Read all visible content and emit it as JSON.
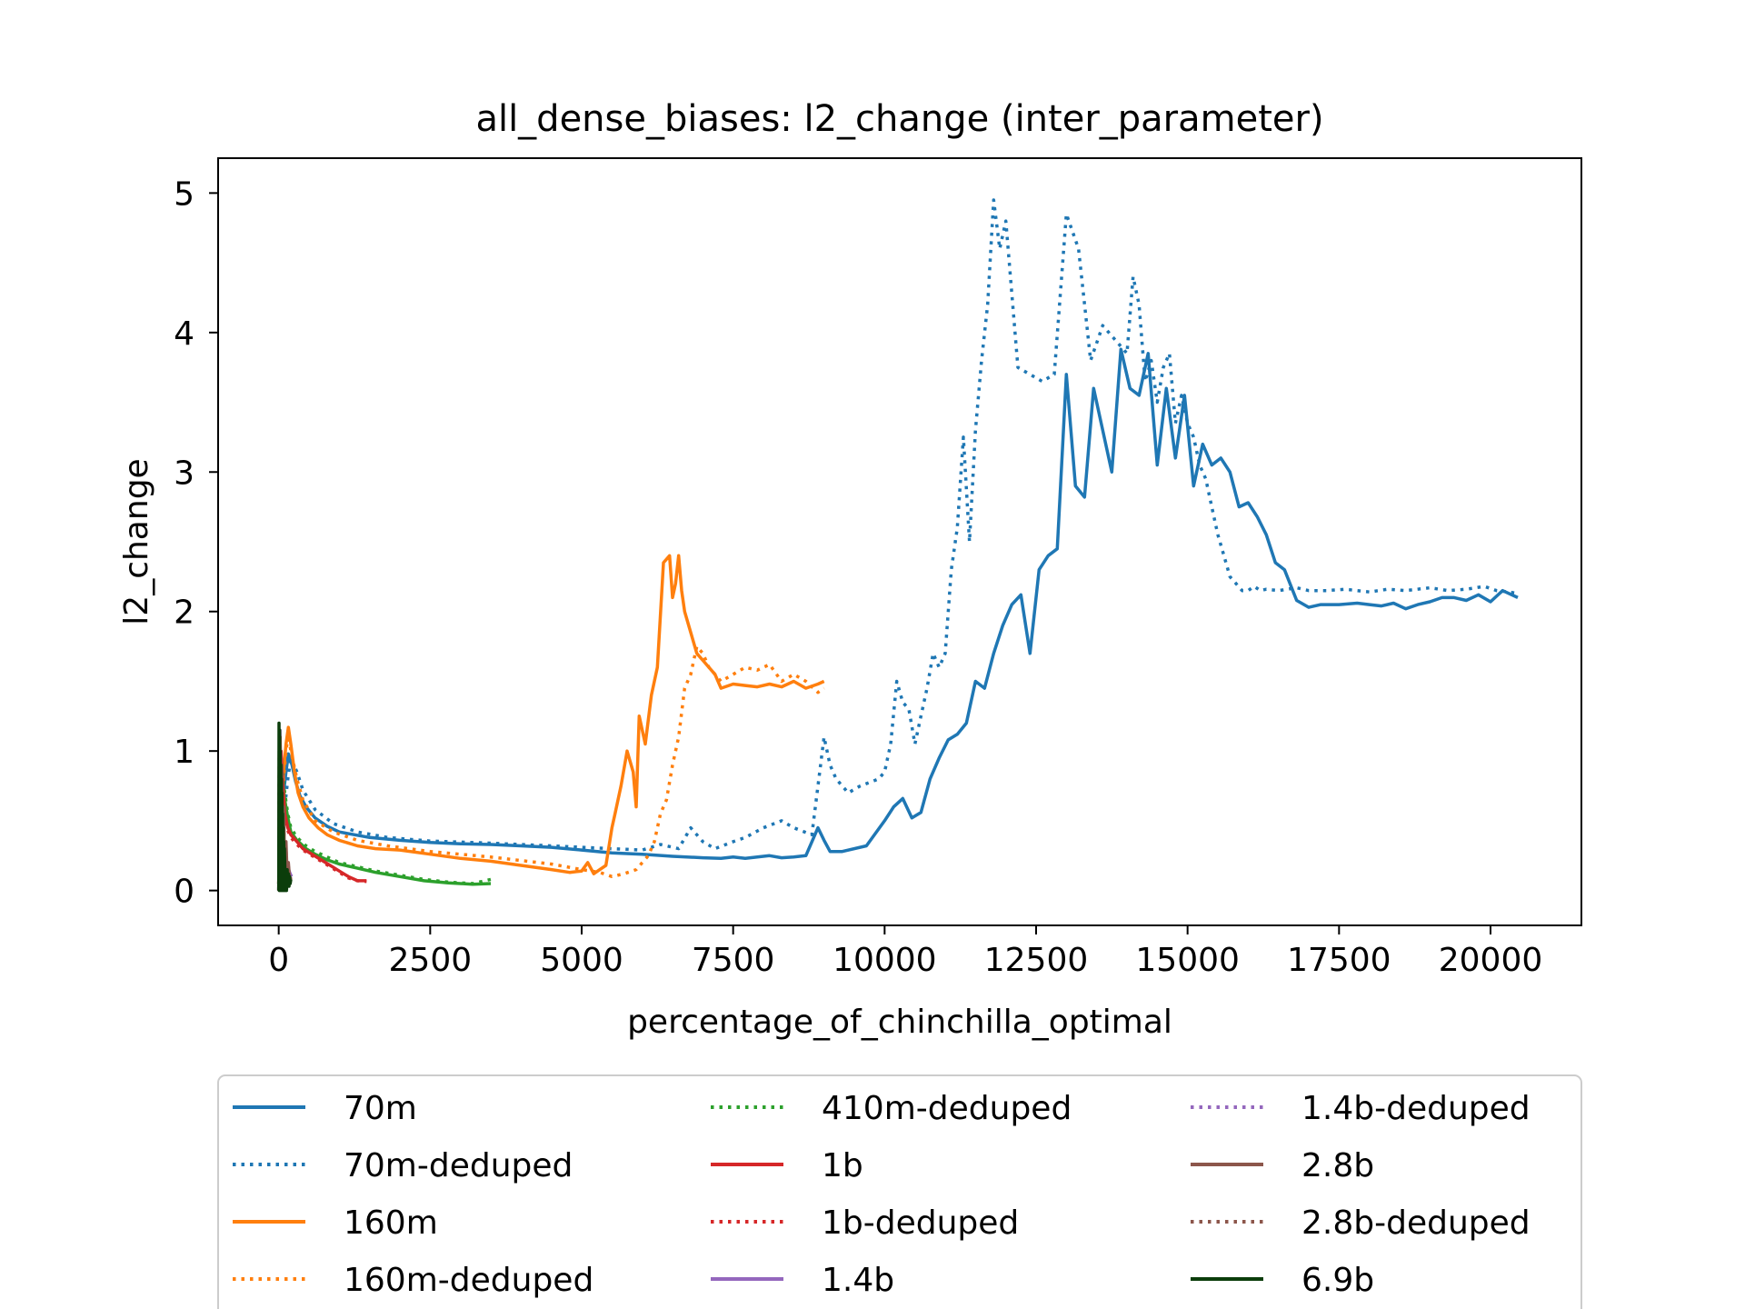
{
  "chart_data": {
    "type": "line",
    "title": "all_dense_biases: l2_change (inter_parameter)",
    "xlabel": "percentage_of_chinchilla_optimal",
    "ylabel": "l2_change",
    "xlim": [
      -1000,
      21500
    ],
    "ylim": [
      -0.25,
      5.25
    ],
    "xticks": [
      0,
      2500,
      5000,
      7500,
      10000,
      12500,
      15000,
      17500,
      20000
    ],
    "yticks": [
      0,
      1,
      2,
      3,
      4,
      5
    ],
    "grid": false,
    "legend": {
      "placement": "below",
      "columns": 3
    },
    "series": [
      {
        "name": "70m",
        "color": "#1f77b4",
        "style": "solid",
        "x": [
          0,
          20,
          50,
          80,
          120,
          160,
          220,
          280,
          350,
          450,
          600,
          800,
          1000,
          1500,
          2000,
          2500,
          3000,
          3500,
          4000,
          4500,
          5000,
          5500,
          6000,
          6500,
          7000,
          7300,
          7500,
          7700,
          7900,
          8100,
          8300,
          8500,
          8700,
          8900,
          9000,
          9100,
          9300,
          9700,
          10000,
          10150,
          10300,
          10450,
          10600,
          10750,
          10900,
          11050,
          11200,
          11350,
          11500,
          11650,
          11800,
          11950,
          12100,
          12250,
          12400,
          12550,
          12700,
          12850,
          13000,
          13150,
          13300,
          13450,
          13600,
          13750,
          13900,
          14050,
          14200,
          14350,
          14500,
          14650,
          14800,
          14950,
          15100,
          15250,
          15400,
          15550,
          15700,
          15850,
          16000,
          16150,
          16300,
          16450,
          16600,
          16800,
          17000,
          17200,
          17500,
          17800,
          18000,
          18200,
          18400,
          18600,
          18800,
          19000,
          19200,
          19400,
          19600,
          19800,
          20000,
          20200,
          20450
        ],
        "y": [
          0.05,
          0.3,
          0.55,
          0.7,
          0.85,
          0.98,
          0.9,
          0.78,
          0.68,
          0.6,
          0.52,
          0.46,
          0.42,
          0.38,
          0.36,
          0.345,
          0.335,
          0.33,
          0.32,
          0.31,
          0.29,
          0.27,
          0.26,
          0.245,
          0.235,
          0.23,
          0.24,
          0.23,
          0.24,
          0.25,
          0.235,
          0.24,
          0.25,
          0.45,
          0.36,
          0.28,
          0.28,
          0.32,
          0.5,
          0.6,
          0.66,
          0.52,
          0.56,
          0.8,
          0.95,
          1.08,
          1.12,
          1.2,
          1.5,
          1.45,
          1.7,
          1.9,
          2.05,
          2.12,
          1.7,
          2.3,
          2.4,
          2.45,
          3.7,
          2.9,
          2.82,
          3.6,
          3.3,
          3.0,
          3.88,
          3.6,
          3.55,
          3.85,
          3.05,
          3.6,
          3.1,
          3.55,
          2.9,
          3.2,
          3.05,
          3.1,
          3.0,
          2.75,
          2.78,
          2.68,
          2.55,
          2.35,
          2.3,
          2.08,
          2.03,
          2.05,
          2.05,
          2.06,
          2.05,
          2.04,
          2.06,
          2.02,
          2.05,
          2.07,
          2.1,
          2.1,
          2.08,
          2.12,
          2.07,
          2.15,
          2.1
        ]
      },
      {
        "name": "70m-deduped",
        "color": "#1f77b4",
        "style": "dotted",
        "x": [
          0,
          50,
          100,
          150,
          200,
          300,
          400,
          600,
          900,
          1300,
          1800,
          2500,
          3500,
          4500,
          5500,
          6000,
          6300,
          6600,
          6800,
          7000,
          7200,
          7500,
          7700,
          8000,
          8300,
          8500,
          8800,
          9000,
          9100,
          9200,
          9400,
          9600,
          9900,
          10000,
          10100,
          10200,
          10300,
          10400,
          10500,
          10600,
          10700,
          10800,
          10900,
          11000,
          11100,
          11200,
          11300,
          11400,
          11500,
          11600,
          11700,
          11800,
          11900,
          12000,
          12200,
          12400,
          12600,
          12800,
          13000,
          13200,
          13400,
          13600,
          13800,
          14000,
          14100,
          14200,
          14300,
          14400,
          14500,
          14600,
          14700,
          14800,
          14900,
          15000,
          15100,
          15200,
          15300,
          15400,
          15500,
          15600,
          15700,
          15800,
          15900,
          16000,
          16100,
          16200,
          16300,
          16500,
          16800,
          17000,
          17300,
          17600,
          18000,
          18300,
          18600,
          19000,
          19300,
          19600,
          19900,
          20100,
          20300,
          20450
        ],
        "y": [
          0.05,
          0.3,
          0.6,
          0.8,
          0.95,
          0.85,
          0.72,
          0.58,
          0.48,
          0.42,
          0.38,
          0.355,
          0.34,
          0.32,
          0.3,
          0.29,
          0.33,
          0.3,
          0.45,
          0.35,
          0.3,
          0.35,
          0.38,
          0.45,
          0.5,
          0.45,
          0.4,
          1.1,
          0.9,
          0.8,
          0.7,
          0.75,
          0.8,
          0.85,
          1.05,
          1.5,
          1.35,
          1.3,
          1.05,
          1.25,
          1.45,
          1.7,
          1.6,
          1.7,
          2.3,
          2.6,
          3.25,
          2.5,
          3.3,
          3.8,
          4.2,
          4.95,
          4.6,
          4.8,
          3.75,
          3.7,
          3.65,
          3.7,
          4.85,
          4.6,
          3.8,
          4.05,
          3.95,
          3.85,
          4.4,
          4.2,
          3.65,
          3.8,
          3.5,
          3.75,
          3.85,
          3.35,
          3.55,
          3.35,
          3.25,
          3.05,
          2.95,
          2.75,
          2.55,
          2.4,
          2.25,
          2.2,
          2.15,
          2.15,
          2.18,
          2.15,
          2.16,
          2.15,
          2.17,
          2.15,
          2.15,
          2.16,
          2.14,
          2.16,
          2.15,
          2.17,
          2.15,
          2.16,
          2.18,
          2.15,
          2.14,
          2.13
        ]
      },
      {
        "name": "160m",
        "color": "#ff7f0e",
        "style": "solid",
        "x": [
          0,
          40,
          80,
          120,
          160,
          200,
          260,
          320,
          400,
          500,
          650,
          800,
          1000,
          1300,
          1600,
          2000,
          2500,
          3000,
          3500,
          4000,
          4500,
          4800,
          5000,
          5100,
          5200,
          5300,
          5400,
          5500,
          5550,
          5650,
          5750,
          5850,
          5900,
          5950,
          6050,
          6150,
          6250,
          6350,
          6450,
          6500,
          6550,
          6600,
          6650,
          6700,
          6800,
          6900,
          7000,
          7100,
          7200,
          7300,
          7500,
          7700,
          7900,
          8100,
          8300,
          8500,
          8700,
          8900,
          9000
        ],
        "y": [
          0.1,
          0.5,
          0.85,
          1.05,
          1.17,
          1.05,
          0.85,
          0.7,
          0.6,
          0.52,
          0.45,
          0.4,
          0.36,
          0.32,
          0.3,
          0.29,
          0.26,
          0.23,
          0.21,
          0.18,
          0.15,
          0.13,
          0.14,
          0.2,
          0.12,
          0.15,
          0.18,
          0.45,
          0.55,
          0.75,
          1.0,
          0.85,
          0.6,
          1.25,
          1.05,
          1.4,
          1.6,
          2.35,
          2.4,
          2.1,
          2.2,
          2.4,
          2.15,
          2.0,
          1.85,
          1.7,
          1.65,
          1.6,
          1.55,
          1.45,
          1.48,
          1.47,
          1.46,
          1.48,
          1.46,
          1.5,
          1.45,
          1.48,
          1.5
        ]
      },
      {
        "name": "160m-deduped",
        "color": "#ff7f0e",
        "style": "dotted",
        "x": [
          0,
          40,
          80,
          120,
          160,
          200,
          300,
          400,
          600,
          900,
          1300,
          1800,
          2500,
          3500,
          4500,
          5000,
          5300,
          5500,
          5700,
          5900,
          6000,
          6100,
          6200,
          6300,
          6400,
          6500,
          6600,
          6700,
          6800,
          6900,
          7000,
          7100,
          7300,
          7500,
          7700,
          7900,
          8100,
          8300,
          8500,
          8700,
          8900,
          9000
        ],
        "y": [
          0.1,
          0.45,
          0.8,
          1.0,
          1.12,
          1.0,
          0.8,
          0.65,
          0.5,
          0.42,
          0.36,
          0.32,
          0.28,
          0.24,
          0.19,
          0.15,
          0.13,
          0.1,
          0.12,
          0.15,
          0.2,
          0.25,
          0.35,
          0.55,
          0.65,
          0.9,
          1.1,
          1.45,
          1.55,
          1.75,
          1.7,
          1.6,
          1.5,
          1.55,
          1.6,
          1.58,
          1.62,
          1.5,
          1.55,
          1.5,
          1.42,
          1.45
        ]
      },
      {
        "name": "410m-deduped",
        "color": "#2ca02c",
        "style": "dotted",
        "x": [
          0,
          30,
          60,
          100,
          150,
          200,
          300,
          450,
          600,
          800,
          1000,
          1300,
          1600,
          2000,
          2400,
          2800,
          3200,
          3500
        ],
        "y": [
          0.05,
          0.5,
          0.85,
          0.7,
          0.55,
          0.45,
          0.38,
          0.32,
          0.28,
          0.24,
          0.2,
          0.17,
          0.14,
          0.11,
          0.08,
          0.06,
          0.05,
          0.08
        ]
      },
      {
        "name": "410m",
        "color": "#2ca02c",
        "style": "solid",
        "legend": false,
        "x": [
          0,
          30,
          60,
          100,
          150,
          200,
          300,
          450,
          600,
          800,
          1000,
          1300,
          1600,
          2000,
          2400,
          2800,
          3200,
          3500
        ],
        "y": [
          0.05,
          0.48,
          0.8,
          0.65,
          0.52,
          0.42,
          0.36,
          0.3,
          0.26,
          0.22,
          0.19,
          0.16,
          0.13,
          0.1,
          0.07,
          0.055,
          0.045,
          0.05
        ]
      },
      {
        "name": "1b",
        "color": "#d62728",
        "style": "solid",
        "x": [
          0,
          20,
          40,
          70,
          100,
          150,
          200,
          300,
          400,
          550,
          700,
          850,
          1000,
          1150,
          1300,
          1450
        ],
        "y": [
          0.05,
          0.7,
          1.0,
          0.75,
          0.55,
          0.45,
          0.4,
          0.35,
          0.3,
          0.26,
          0.22,
          0.18,
          0.14,
          0.1,
          0.07,
          0.07
        ]
      },
      {
        "name": "1b-deduped",
        "color": "#d62728",
        "style": "dotted",
        "x": [
          0,
          20,
          40,
          70,
          100,
          150,
          200,
          300,
          400,
          550,
          700,
          850,
          1000,
          1150,
          1300,
          1450
        ],
        "y": [
          0.05,
          0.65,
          0.95,
          0.72,
          0.52,
          0.43,
          0.38,
          0.33,
          0.29,
          0.25,
          0.21,
          0.17,
          0.13,
          0.09,
          0.07,
          0.065
        ]
      },
      {
        "name": "1.4b",
        "color": "#9467bd",
        "style": "solid",
        "x": [
          0,
          10,
          20,
          35,
          50,
          70,
          90,
          120,
          150,
          180,
          210
        ],
        "y": [
          0.0,
          0.9,
          1.15,
          0.8,
          0.55,
          0.4,
          0.3,
          0.22,
          0.17,
          0.13,
          0.1
        ]
      },
      {
        "name": "1.4b-deduped",
        "color": "#9467bd",
        "style": "dotted",
        "x": [
          0,
          10,
          20,
          35,
          50,
          70,
          90,
          120,
          150,
          180,
          210
        ],
        "y": [
          0.0,
          0.85,
          1.1,
          0.75,
          0.5,
          0.38,
          0.28,
          0.2,
          0.16,
          0.12,
          0.1
        ]
      },
      {
        "name": "2.8b",
        "color": "#8c564b",
        "style": "solid",
        "x": [
          0,
          8,
          16,
          25,
          35,
          50,
          65,
          80,
          100,
          120,
          140,
          160,
          180,
          200
        ],
        "y": [
          0.0,
          1.0,
          0.3,
          1.1,
          0.2,
          0.9,
          0.1,
          0.6,
          0.15,
          0.35,
          0.1,
          0.2,
          0.08,
          0.1
        ]
      },
      {
        "name": "2.8b-deduped",
        "color": "#8c564b",
        "style": "dotted",
        "x": [
          0,
          8,
          16,
          25,
          35,
          50,
          65,
          80,
          100,
          120,
          140,
          160,
          180,
          200
        ],
        "y": [
          0.0,
          0.95,
          0.25,
          1.05,
          0.15,
          0.85,
          0.1,
          0.55,
          0.12,
          0.3,
          0.08,
          0.18,
          0.06,
          0.09
        ]
      },
      {
        "name": "6.9b",
        "color": "#0b3d0b",
        "style": "solid",
        "x": [
          0,
          5,
          10,
          15,
          20,
          25,
          30,
          35,
          40,
          45,
          50,
          55,
          60,
          65,
          70,
          75,
          80,
          85,
          90,
          95,
          100,
          110,
          120,
          130,
          140,
          150,
          160,
          170,
          180,
          190,
          200
        ],
        "y": [
          0.0,
          1.2,
          0.0,
          1.15,
          0.05,
          1.0,
          0.0,
          0.9,
          0.05,
          0.8,
          0.0,
          0.7,
          0.05,
          0.55,
          0.0,
          0.45,
          0.05,
          0.35,
          0.0,
          0.3,
          0.2,
          0.0,
          0.15,
          0.0,
          0.15,
          0.05,
          0.12,
          0.03,
          0.1,
          0.05,
          0.08
        ]
      }
    ]
  }
}
